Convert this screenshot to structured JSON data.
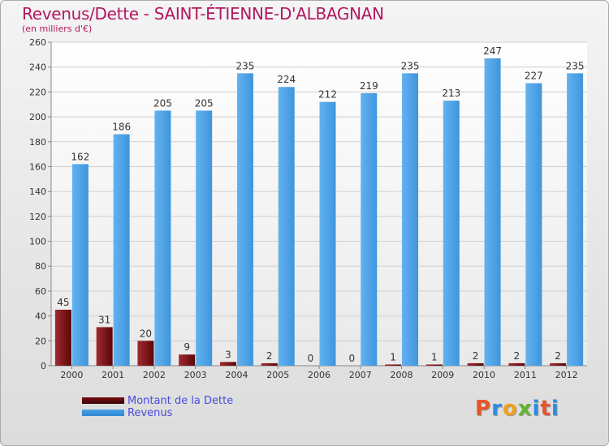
{
  "header": {
    "title": "Revenus/Dette - SAINT-ÉTIENNE-D'ALBAGNAN",
    "subtitle": "(en milliers d'€)"
  },
  "legend": {
    "items": [
      {
        "label": "Montant de la Dette",
        "color": "#7a0f12"
      },
      {
        "label": "Revenus",
        "color": "#4aa3e8"
      }
    ]
  },
  "brand": {
    "letters": [
      "P",
      "r",
      "o",
      "x",
      "i",
      "t",
      "i"
    ],
    "colors": [
      "#e8552b",
      "#2e8ce0",
      "#f0a020",
      "#62b233",
      "#2e8ce0",
      "#e8552b",
      "#2e8ce0"
    ]
  },
  "chart_data": {
    "type": "bar",
    "title": "Revenus/Dette - SAINT-ÉTIENNE-D'ALBAGNAN",
    "ylabel": "(en milliers d'€)",
    "xlabel": "",
    "categories": [
      "2000",
      "2001",
      "2002",
      "2003",
      "2004",
      "2005",
      "2006",
      "2007",
      "2008",
      "2009",
      "2010",
      "2011",
      "2012"
    ],
    "series": [
      {
        "name": "Montant de la Dette",
        "color": "#7a0f12",
        "values": [
          45,
          31,
          20,
          9,
          3,
          2,
          0,
          0,
          1,
          1,
          2,
          2,
          2
        ]
      },
      {
        "name": "Revenus",
        "color": "#4aa3e8",
        "values": [
          162,
          186,
          205,
          205,
          235,
          224,
          212,
          219,
          235,
          213,
          247,
          227,
          235
        ]
      }
    ],
    "ylim": [
      0,
      260
    ],
    "yticks": [
      0,
      20,
      40,
      60,
      80,
      100,
      120,
      140,
      160,
      180,
      200,
      220,
      240,
      260
    ],
    "grid": true,
    "legend_position": "bottom-left"
  }
}
